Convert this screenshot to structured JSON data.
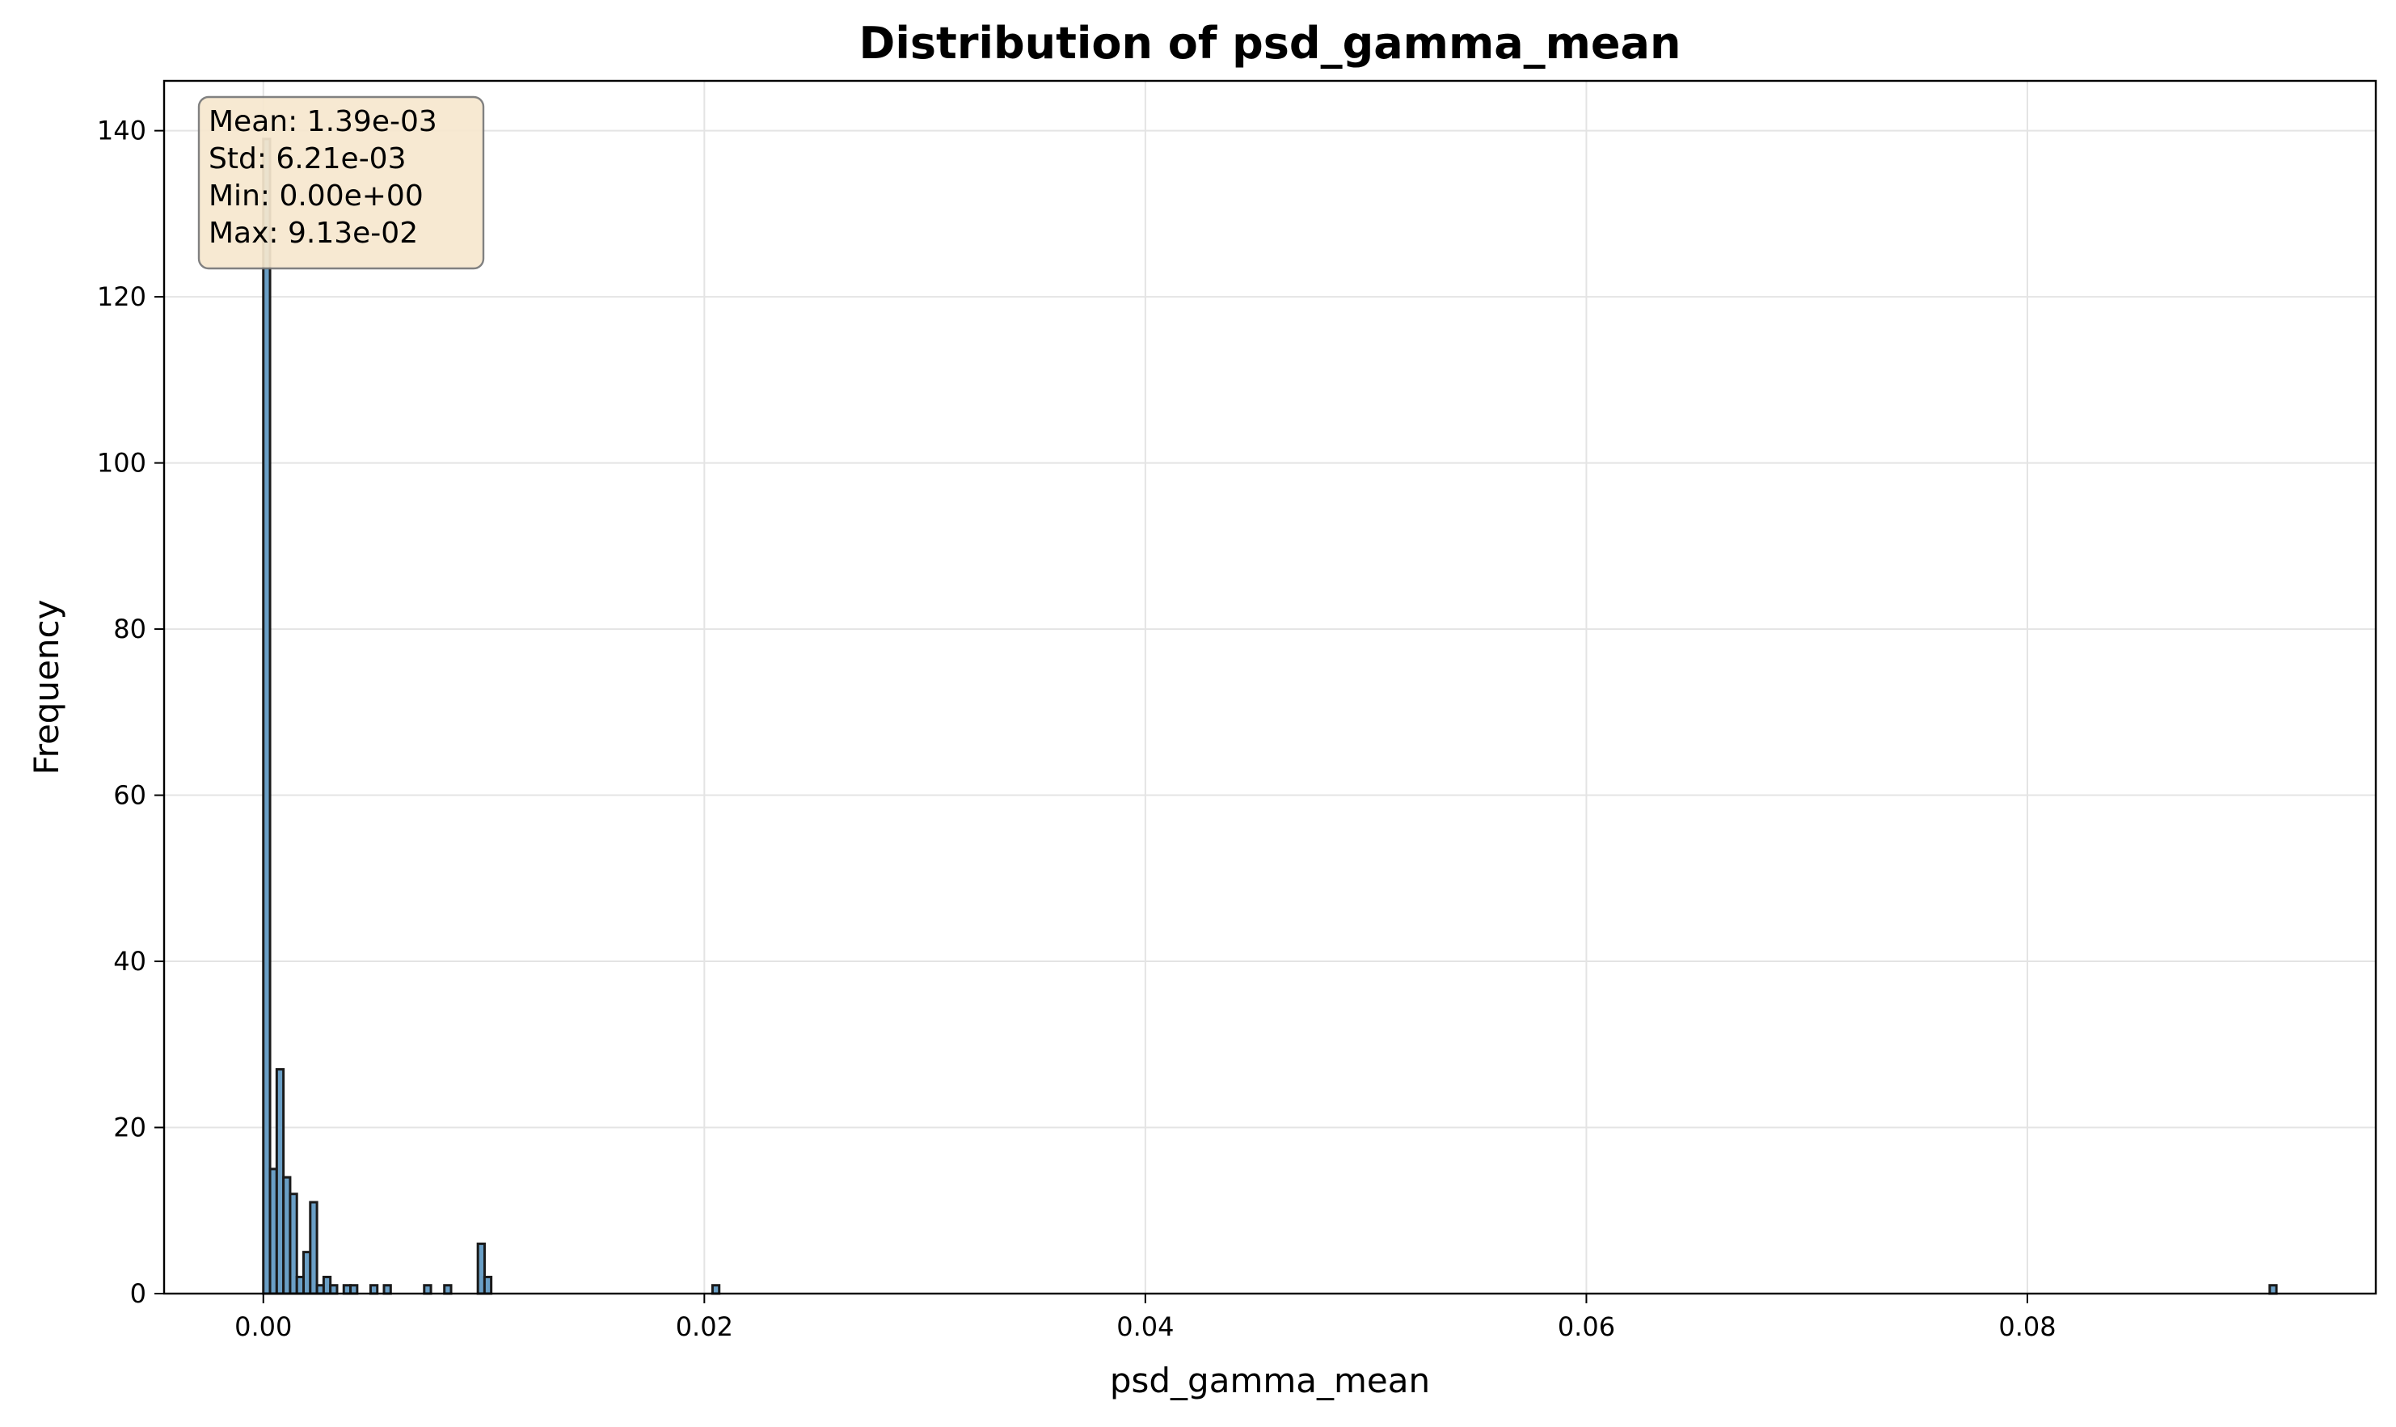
{
  "chart_data": {
    "type": "bar",
    "title": "Distribution of psd_gamma_mean",
    "xlabel": "psd_gamma_mean",
    "ylabel": "Frequency",
    "xlim": [
      -0.0045,
      0.0958
    ],
    "ylim": [
      0,
      146
    ],
    "x_ticks": [
      0.0,
      0.02,
      0.04,
      0.06,
      0.08
    ],
    "x_tick_labels": [
      "0.00",
      "0.02",
      "0.04",
      "0.06",
      "0.08"
    ],
    "y_ticks": [
      0,
      20,
      40,
      60,
      80,
      100,
      120,
      140
    ],
    "y_tick_labels": [
      "0",
      "20",
      "40",
      "60",
      "80",
      "100",
      "120",
      "140"
    ],
    "grid": true,
    "bin_width": 0.000304,
    "bins": [
      {
        "x": 0.0,
        "count": 139
      },
      {
        "x": 0.000304,
        "count": 15
      },
      {
        "x": 0.000608,
        "count": 27
      },
      {
        "x": 0.000912,
        "count": 14
      },
      {
        "x": 0.001216,
        "count": 12
      },
      {
        "x": 0.00152,
        "count": 2
      },
      {
        "x": 0.001824,
        "count": 5
      },
      {
        "x": 0.002128,
        "count": 11
      },
      {
        "x": 0.002432,
        "count": 1
      },
      {
        "x": 0.002736,
        "count": 2
      },
      {
        "x": 0.00304,
        "count": 1
      },
      {
        "x": 0.003648,
        "count": 1
      },
      {
        "x": 0.003952,
        "count": 1
      },
      {
        "x": 0.004864,
        "count": 1
      },
      {
        "x": 0.005472,
        "count": 1
      },
      {
        "x": 0.007296,
        "count": 1
      },
      {
        "x": 0.00821,
        "count": 1
      },
      {
        "x": 0.00973,
        "count": 6
      },
      {
        "x": 0.01003,
        "count": 2
      },
      {
        "x": 0.02037,
        "count": 1
      },
      {
        "x": 0.09099,
        "count": 1
      }
    ],
    "bar_fill": "#6a9fc6",
    "bar_edge": "#1a1a1a",
    "grid_color": "#e4e4e4",
    "stats_box": {
      "lines": [
        "Mean: 1.39e-03",
        "Std: 6.21e-03",
        "Min: 0.00e+00",
        "Max: 9.13e-02"
      ],
      "background": "#f7e8cf",
      "border": "#777777",
      "placement": "top-left"
    }
  }
}
